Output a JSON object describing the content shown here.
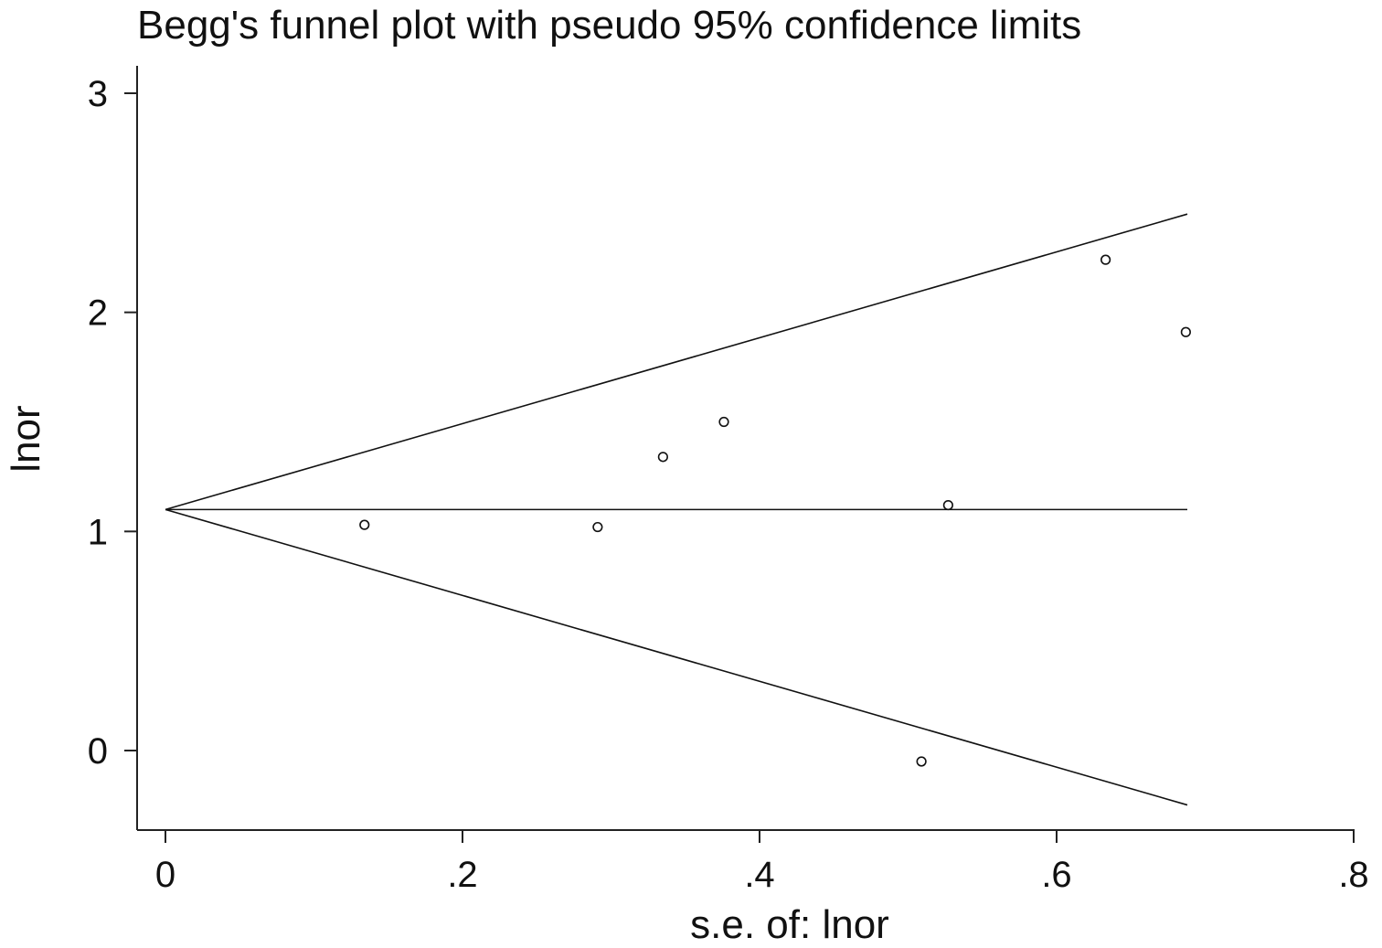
{
  "chart_data": {
    "type": "scatter",
    "title": "Begg's funnel plot with pseudo 95% confidence limits",
    "xlabel": "s.e. of: lnor",
    "ylabel": "lnor",
    "xlim": [
      0,
      0.8
    ],
    "ylim": [
      -0.35,
      3.12
    ],
    "x_ticks": [
      {
        "value": 0,
        "label": "0"
      },
      {
        "value": 0.2,
        "label": ".2"
      },
      {
        "value": 0.4,
        "label": ".4"
      },
      {
        "value": 0.6,
        "label": ".6"
      },
      {
        "value": 0.8,
        "label": ".8"
      }
    ],
    "y_ticks": [
      {
        "value": 0,
        "label": "0"
      },
      {
        "value": 1,
        "label": "1"
      },
      {
        "value": 2,
        "label": "2"
      },
      {
        "value": 3,
        "label": "3"
      }
    ],
    "pooled_estimate": 1.1,
    "funnel_se_max": 0.688,
    "confidence_multiplier": 1.96,
    "points": [
      {
        "x": 0.134,
        "y": 1.03
      },
      {
        "x": 0.291,
        "y": 1.02
      },
      {
        "x": 0.335,
        "y": 1.34
      },
      {
        "x": 0.376,
        "y": 1.5
      },
      {
        "x": 0.509,
        "y": -0.05
      },
      {
        "x": 0.527,
        "y": 1.12
      },
      {
        "x": 0.633,
        "y": 2.24
      },
      {
        "x": 0.687,
        "y": 1.91
      }
    ],
    "grid": false,
    "legend": "none"
  }
}
